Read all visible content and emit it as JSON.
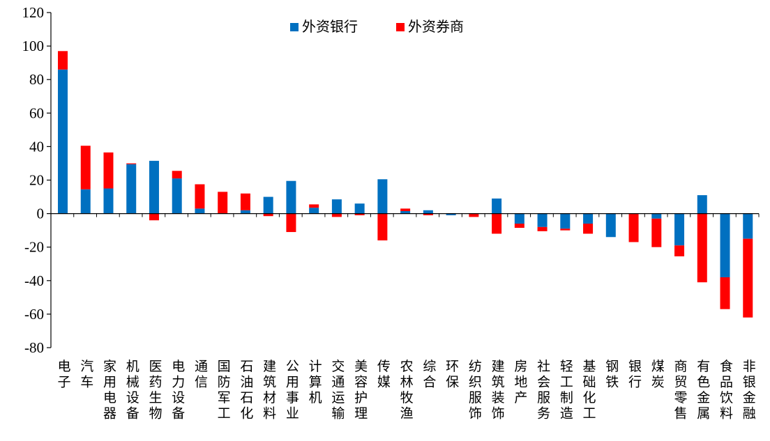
{
  "chart_data": {
    "type": "bar",
    "stacked": true,
    "legend": "top-center",
    "grid": false,
    "ylim": [
      -80,
      120
    ],
    "yticks": [
      "120",
      "100",
      "80",
      "60",
      "40",
      "20",
      "0",
      "-20",
      "-40",
      "-60",
      "-80"
    ],
    "ytick_values": [
      120,
      100,
      80,
      60,
      40,
      20,
      0,
      -20,
      -40,
      -60,
      -80
    ],
    "categories": [
      "电子",
      "汽车",
      "家用电器",
      "机械设备",
      "医药生物",
      "电力设备",
      "通信",
      "国防军工",
      "石油石化",
      "建筑材料",
      "公用事业",
      "计算机",
      "交通运输",
      "美容护理",
      "传媒",
      "农林牧渔",
      "综合",
      "环保",
      "纺织服饰",
      "建筑装饰",
      "房地产",
      "社会服务",
      "轻工制造",
      "基础化工",
      "钢铁",
      "银行",
      "煤炭",
      "商贸零售",
      "有色金属",
      "食品饮料",
      "非银金融"
    ],
    "series": [
      {
        "name": "外资银行",
        "color": "#0070C0",
        "values": [
          86,
          14.5,
          15,
          29.5,
          31.5,
          21,
          3,
          0,
          2,
          10,
          19.5,
          3.5,
          8.5,
          6,
          20.5,
          1.5,
          2,
          -1,
          0,
          9,
          -6,
          -8,
          -9,
          -6,
          -14,
          0,
          -3,
          -19,
          11,
          -38,
          -15
        ]
      },
      {
        "name": "外资券商",
        "color": "#FF0000",
        "values": [
          11,
          26,
          21.5,
          0.5,
          -4,
          4.5,
          14.5,
          13,
          10,
          -1.5,
          -11,
          2,
          -2,
          -1,
          -16,
          1.5,
          -1,
          0,
          -2,
          -12,
          -2.5,
          -2.5,
          -1,
          -6,
          0,
          -17,
          -17,
          -6.5,
          -41,
          -19,
          -47
        ]
      }
    ]
  }
}
